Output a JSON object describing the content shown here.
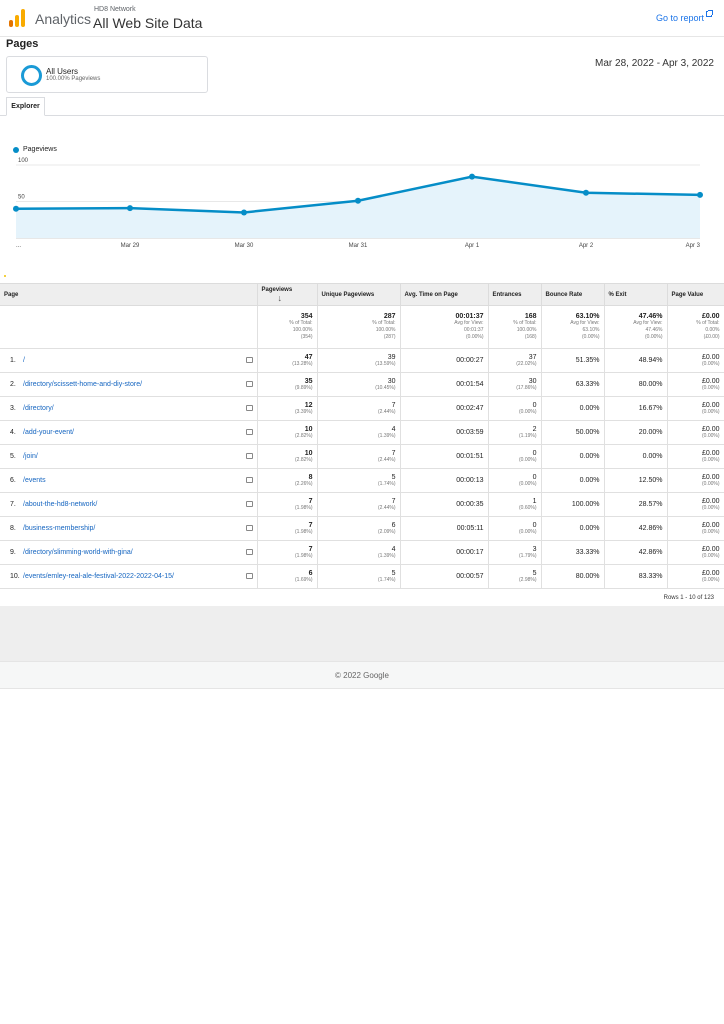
{
  "header": {
    "brand": "Analytics",
    "account": "HD8 Network",
    "view": "All Web Site Data",
    "goto_report": "Go to report"
  },
  "page_title": "Pages",
  "segment": {
    "name": "All Users",
    "sub": "100.00% Pageviews"
  },
  "date_range": "Mar 28, 2022 - Apr 3, 2022",
  "tab": "Explorer",
  "chart_data": {
    "type": "area",
    "series": [
      {
        "name": "Pageviews",
        "values": [
          40,
          41,
          35,
          51,
          84,
          62,
          59
        ]
      }
    ],
    "x": [
      "...",
      "Mar 29",
      "Mar 30",
      "Mar 31",
      "Apr 1",
      "Apr 2",
      "Apr 3"
    ],
    "y_ticks": [
      "100",
      "50"
    ],
    "ylim": [
      0,
      100
    ],
    "color": "#058dc7",
    "fill": "#e5f3fb",
    "legend_position": "top-left",
    "grid": true
  },
  "table": {
    "columns": [
      "Page",
      "Pageviews",
      "Unique Pageviews",
      "Avg. Time on Page",
      "Entrances",
      "Bounce Rate",
      "% Exit",
      "Page Value"
    ],
    "totals": [
      {
        "main": "354",
        "sub1": "% of Total:",
        "sub2": "100.00%",
        "sub3": "(354)"
      },
      {
        "main": "287",
        "sub1": "% of Total:",
        "sub2": "100.00%",
        "sub3": "(287)"
      },
      {
        "main": "00:01:37",
        "sub1": "Avg for View:",
        "sub2": "00:01:37",
        "sub3": "(0.00%)"
      },
      {
        "main": "168",
        "sub1": "% of Total:",
        "sub2": "100.00%",
        "sub3": "(168)"
      },
      {
        "main": "63.10%",
        "sub1": "Avg for View:",
        "sub2": "63.10%",
        "sub3": "(0.00%)"
      },
      {
        "main": "47.46%",
        "sub1": "Avg for View:",
        "sub2": "47.46%",
        "sub3": "(0.00%)"
      },
      {
        "main": "£0.00",
        "sub1": "% of Total:",
        "sub2": "0.00%",
        "sub3": "(£0.00)"
      }
    ],
    "rows": [
      {
        "idx": "1.",
        "page": "/",
        "pv": "47",
        "pv_pct": "(13.28%)",
        "upv": "39",
        "upv_pct": "(13.59%)",
        "time": "00:00:27",
        "ent": "37",
        "ent_pct": "(22.02%)",
        "bounce": "51.35%",
        "exit": "48.94%",
        "val": "£0.00",
        "val_pct": "(0.00%)"
      },
      {
        "idx": "2.",
        "page": "/directory/scissett-home-and-diy-store/",
        "pv": "35",
        "pv_pct": "(9.89%)",
        "upv": "30",
        "upv_pct": "(10.45%)",
        "time": "00:01:54",
        "ent": "30",
        "ent_pct": "(17.86%)",
        "bounce": "63.33%",
        "exit": "80.00%",
        "val": "£0.00",
        "val_pct": "(0.00%)"
      },
      {
        "idx": "3.",
        "page": "/directory/",
        "pv": "12",
        "pv_pct": "(3.39%)",
        "upv": "7",
        "upv_pct": "(2.44%)",
        "time": "00:02:47",
        "ent": "0",
        "ent_pct": "(0.00%)",
        "bounce": "0.00%",
        "exit": "16.67%",
        "val": "£0.00",
        "val_pct": "(0.00%)"
      },
      {
        "idx": "4.",
        "page": "/add-your-event/",
        "pv": "10",
        "pv_pct": "(2.82%)",
        "upv": "4",
        "upv_pct": "(1.39%)",
        "time": "00:03:59",
        "ent": "2",
        "ent_pct": "(1.19%)",
        "bounce": "50.00%",
        "exit": "20.00%",
        "val": "£0.00",
        "val_pct": "(0.00%)"
      },
      {
        "idx": "5.",
        "page": "/join/",
        "pv": "10",
        "pv_pct": "(2.82%)",
        "upv": "7",
        "upv_pct": "(2.44%)",
        "time": "00:01:51",
        "ent": "0",
        "ent_pct": "(0.00%)",
        "bounce": "0.00%",
        "exit": "0.00%",
        "val": "£0.00",
        "val_pct": "(0.00%)"
      },
      {
        "idx": "6.",
        "page": "/events",
        "pv": "8",
        "pv_pct": "(2.26%)",
        "upv": "5",
        "upv_pct": "(1.74%)",
        "time": "00:00:13",
        "ent": "0",
        "ent_pct": "(0.00%)",
        "bounce": "0.00%",
        "exit": "12.50%",
        "val": "£0.00",
        "val_pct": "(0.00%)"
      },
      {
        "idx": "7.",
        "page": "/about-the-hd8-network/",
        "pv": "7",
        "pv_pct": "(1.98%)",
        "upv": "7",
        "upv_pct": "(2.44%)",
        "time": "00:00:35",
        "ent": "1",
        "ent_pct": "(0.60%)",
        "bounce": "100.00%",
        "exit": "28.57%",
        "val": "£0.00",
        "val_pct": "(0.00%)"
      },
      {
        "idx": "8.",
        "page": "/business-membership/",
        "pv": "7",
        "pv_pct": "(1.98%)",
        "upv": "6",
        "upv_pct": "(2.09%)",
        "time": "00:05:11",
        "ent": "0",
        "ent_pct": "(0.00%)",
        "bounce": "0.00%",
        "exit": "42.86%",
        "val": "£0.00",
        "val_pct": "(0.00%)"
      },
      {
        "idx": "9.",
        "page": "/directory/slimming-world-with-gina/",
        "pv": "7",
        "pv_pct": "(1.98%)",
        "upv": "4",
        "upv_pct": "(1.39%)",
        "time": "00:00:17",
        "ent": "3",
        "ent_pct": "(1.79%)",
        "bounce": "33.33%",
        "exit": "42.86%",
        "val": "£0.00",
        "val_pct": "(0.00%)"
      },
      {
        "idx": "10.",
        "page": "/events/emley-real-ale-festival-2022-2022-04-15/",
        "pv": "6",
        "pv_pct": "(1.69%)",
        "upv": "5",
        "upv_pct": "(1.74%)",
        "time": "00:00:57",
        "ent": "5",
        "ent_pct": "(2.98%)",
        "bounce": "80.00%",
        "exit": "83.33%",
        "val": "£0.00",
        "val_pct": "(0.00%)"
      }
    ],
    "rows_info": "Rows 1 - 10 of 123"
  },
  "footer": "© 2022 Google"
}
